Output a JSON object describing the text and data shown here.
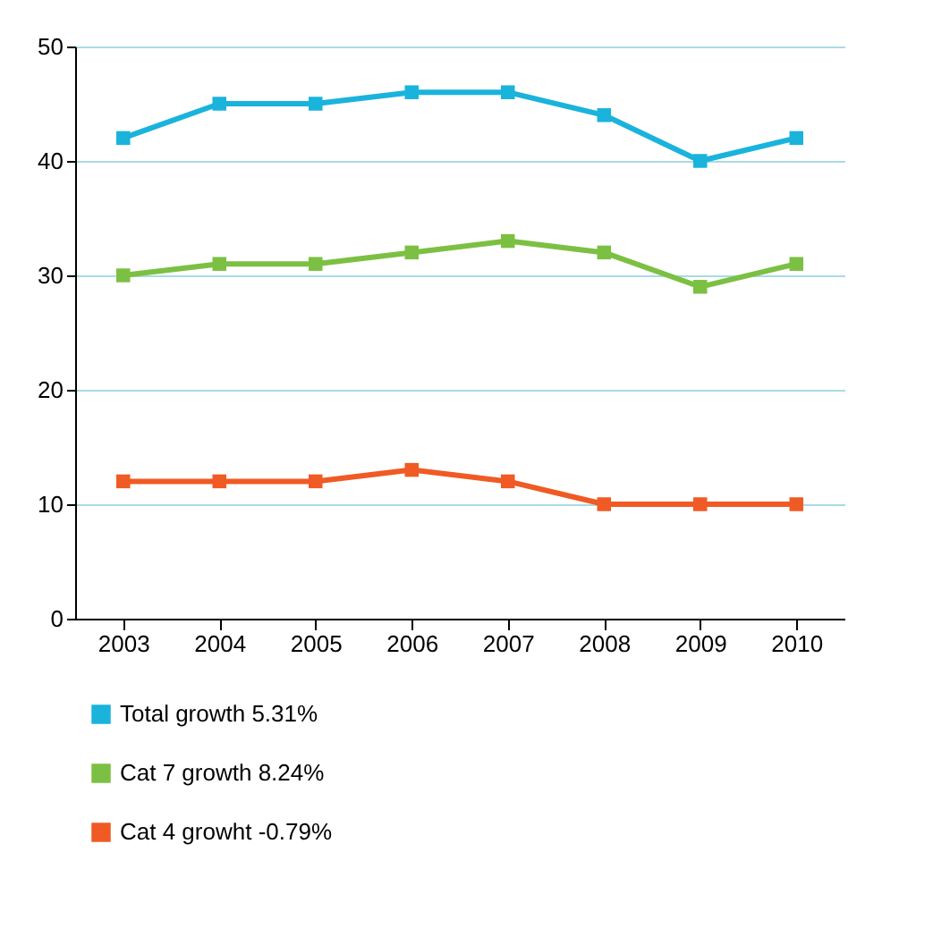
{
  "chart_data": {
    "type": "line",
    "categories": [
      "2003",
      "2004",
      "2005",
      "2006",
      "2007",
      "2008",
      "2009",
      "2010"
    ],
    "series": [
      {
        "name": "Total growth 5.31%",
        "color": "#1ab3dc",
        "values": [
          42,
          45,
          45,
          46,
          46,
          44,
          40,
          42
        ]
      },
      {
        "name": "Cat 7 growth 8.24%",
        "color": "#7cc043",
        "values": [
          30,
          31,
          31,
          32,
          33,
          32,
          29,
          31
        ]
      },
      {
        "name": "Cat 4 growht -0.79%",
        "color": "#f05a24",
        "values": [
          12,
          12,
          12,
          13,
          12,
          10,
          10,
          10
        ]
      }
    ],
    "ylim": [
      0,
      50
    ],
    "yticks": [
      0,
      10,
      20,
      30,
      40,
      50
    ],
    "grid": "y",
    "legend": "bottom left",
    "marker": "square",
    "line_style": "solid"
  }
}
